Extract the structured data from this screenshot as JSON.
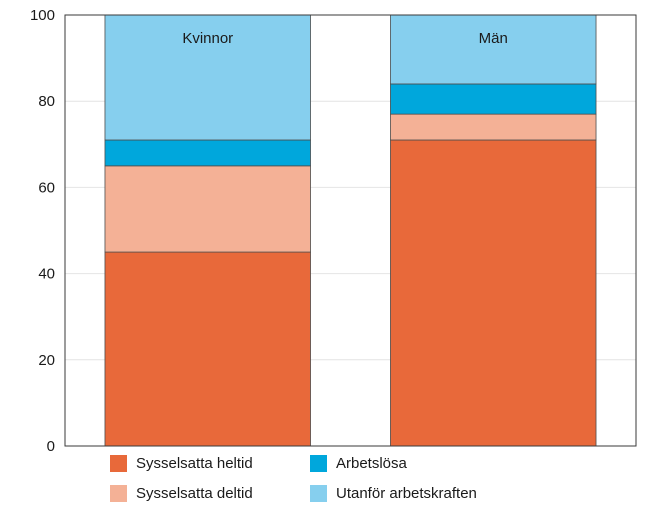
{
  "chart_data": {
    "type": "bar",
    "stacked": true,
    "categories": [
      "Kvinnor",
      "Män"
    ],
    "series": [
      {
        "name": "Sysselsatta heltid",
        "values": [
          45,
          71
        ],
        "color": "#e8693a"
      },
      {
        "name": "Sysselsatta deltid",
        "values": [
          20,
          6
        ],
        "color": "#f4b196"
      },
      {
        "name": "Arbetslösa",
        "values": [
          6,
          7
        ],
        "color": "#00a7dc"
      },
      {
        "name": "Utanför arbetskraften",
        "values": [
          29,
          16
        ],
        "color": "#86cfee"
      }
    ],
    "ylim": [
      0,
      100
    ],
    "yticks": [
      "0",
      "20",
      "40",
      "60",
      "80",
      "100"
    ],
    "grid": true,
    "legend_position": "bottom",
    "category_label_position": "inside-top"
  }
}
